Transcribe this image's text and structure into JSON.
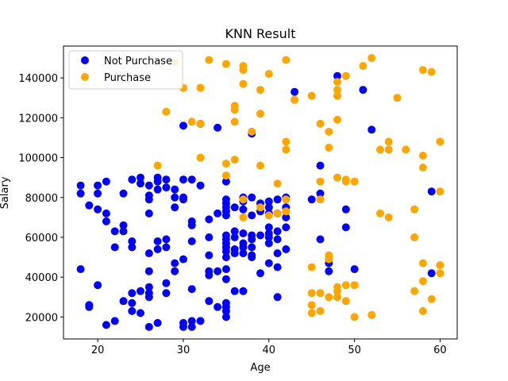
{
  "chart_data": {
    "type": "scatter",
    "title": "KNN Result",
    "xlabel": "Age",
    "ylabel": "Salary",
    "xlim": [
      16.0,
      62.0
    ],
    "ylim": [
      9000,
      156000
    ],
    "xticks": [
      20,
      30,
      40,
      50,
      60
    ],
    "yticks": [
      20000,
      40000,
      60000,
      80000,
      100000,
      120000,
      140000
    ],
    "ytick_labels": [
      "20000",
      "40000",
      "60000",
      "80000",
      "100000",
      "120000",
      "140000"
    ],
    "legend_position": "upper-left",
    "series": [
      {
        "name": "Not Purchase",
        "color": "#0000ff",
        "points": [
          [
            18,
            86000
          ],
          [
            18,
            82000
          ],
          [
            18,
            44000
          ],
          [
            19,
            76000
          ],
          [
            19,
            26000
          ],
          [
            19,
            25000
          ],
          [
            20,
            86000
          ],
          [
            20,
            82000
          ],
          [
            20,
            74000
          ],
          [
            20,
            36000
          ],
          [
            21,
            88000
          ],
          [
            21,
            72000
          ],
          [
            21,
            68000
          ],
          [
            21,
            16000
          ],
          [
            22,
            63000
          ],
          [
            22,
            55000
          ],
          [
            22,
            18000
          ],
          [
            23,
            82000
          ],
          [
            23,
            66000
          ],
          [
            23,
            63000
          ],
          [
            23,
            28000
          ],
          [
            24,
            89000
          ],
          [
            24,
            58000
          ],
          [
            24,
            55000
          ],
          [
            24,
            32000
          ],
          [
            24,
            27000
          ],
          [
            24,
            23000
          ],
          [
            25,
            90000
          ],
          [
            25,
            87000
          ],
          [
            25,
            33000
          ],
          [
            25,
            22000
          ],
          [
            26,
            86000
          ],
          [
            26,
            81000
          ],
          [
            26,
            79000
          ],
          [
            26,
            72000
          ],
          [
            26,
            52000
          ],
          [
            26,
            43000
          ],
          [
            26,
            35000
          ],
          [
            26,
            32000
          ],
          [
            26,
            30000
          ],
          [
            26,
            15000
          ],
          [
            27,
            90000
          ],
          [
            27,
            88000
          ],
          [
            27,
            84000
          ],
          [
            27,
            58000
          ],
          [
            27,
            54000
          ],
          [
            27,
            17000
          ],
          [
            28,
            89000
          ],
          [
            28,
            85000
          ],
          [
            28,
            59000
          ],
          [
            28,
            55000
          ],
          [
            28,
            37000
          ],
          [
            28,
            32000
          ],
          [
            29,
            84000
          ],
          [
            29,
            80000
          ],
          [
            29,
            75000
          ],
          [
            29,
            47000
          ],
          [
            29,
            43000
          ],
          [
            30,
            89000
          ],
          [
            30,
            80000
          ],
          [
            30,
            79000
          ],
          [
            30,
            49000
          ],
          [
            30,
            17000
          ],
          [
            30,
            15000
          ],
          [
            30,
            116000
          ],
          [
            31,
            89000
          ],
          [
            31,
            68000
          ],
          [
            31,
            66000
          ],
          [
            31,
            58000
          ],
          [
            31,
            34000
          ],
          [
            31,
            18000
          ],
          [
            31,
            15000
          ],
          [
            32,
            117000
          ],
          [
            32,
            86000
          ],
          [
            32,
            18000
          ],
          [
            33,
            69000
          ],
          [
            33,
            60000
          ],
          [
            33,
            51000
          ],
          [
            33,
            43000
          ],
          [
            33,
            41000
          ],
          [
            33,
            28000
          ],
          [
            34,
            115000
          ],
          [
            34,
            72000
          ],
          [
            34,
            43000
          ],
          [
            34,
            25000
          ],
          [
            35,
            88000
          ],
          [
            35,
            79000
          ],
          [
            35,
            77000
          ],
          [
            35,
            75000
          ],
          [
            35,
            73000
          ],
          [
            35,
            71000
          ],
          [
            35,
            61000
          ],
          [
            35,
            59000
          ],
          [
            35,
            57000
          ],
          [
            35,
            55000
          ],
          [
            35,
            53000
          ],
          [
            35,
            50000
          ],
          [
            35,
            44000
          ],
          [
            35,
            39000
          ],
          [
            35,
            27000
          ],
          [
            35,
            25000
          ],
          [
            35,
            23000
          ],
          [
            35,
            20000
          ],
          [
            36,
            75000
          ],
          [
            36,
            63000
          ],
          [
            36,
            60000
          ],
          [
            36,
            54000
          ],
          [
            36,
            52000
          ],
          [
            36,
            33000
          ],
          [
            37,
            80000
          ],
          [
            37,
            78000
          ],
          [
            37,
            74000
          ],
          [
            37,
            62000
          ],
          [
            37,
            57000
          ],
          [
            37,
            55000
          ],
          [
            37,
            52000
          ],
          [
            37,
            33000
          ],
          [
            38,
            112000
          ],
          [
            38,
            80000
          ],
          [
            38,
            71000
          ],
          [
            38,
            61000
          ],
          [
            38,
            59000
          ],
          [
            38,
            55000
          ],
          [
            38,
            51000
          ],
          [
            38,
            50000
          ],
          [
            39,
            77000
          ],
          [
            39,
            73000
          ],
          [
            39,
            61000
          ],
          [
            39,
            42000
          ],
          [
            40,
            78000
          ],
          [
            40,
            75000
          ],
          [
            40,
            72000
          ],
          [
            40,
            65000
          ],
          [
            40,
            62000
          ],
          [
            40,
            60000
          ],
          [
            40,
            57000
          ],
          [
            40,
            47000
          ],
          [
            41,
            79000
          ],
          [
            41,
            72000
          ],
          [
            41,
            63000
          ],
          [
            41,
            59000
          ],
          [
            41,
            52000
          ],
          [
            41,
            45000
          ],
          [
            41,
            30000
          ],
          [
            42,
            80000
          ],
          [
            42,
            75000
          ],
          [
            42,
            70000
          ],
          [
            42,
            65000
          ],
          [
            42,
            54000
          ],
          [
            43,
            133000
          ],
          [
            45,
            79000
          ],
          [
            46,
            96000
          ],
          [
            46,
            82000
          ],
          [
            46,
            59000
          ],
          [
            47,
            47000
          ],
          [
            47,
            43000
          ],
          [
            48,
            141000
          ],
          [
            49,
            74000
          ],
          [
            49,
            65000
          ],
          [
            50,
            44000
          ],
          [
            51,
            134000
          ],
          [
            52,
            114000
          ],
          [
            59,
            83000
          ],
          [
            59,
            42000
          ]
        ]
      },
      {
        "name": "Purchase",
        "color": "#ffa500",
        "points": [
          [
            27,
            96000
          ],
          [
            28,
            123000
          ],
          [
            29,
            148000
          ],
          [
            30,
            135000
          ],
          [
            31,
            118000
          ],
          [
            32,
            135000
          ],
          [
            32,
            117000
          ],
          [
            32,
            100000
          ],
          [
            33,
            149000
          ],
          [
            35,
            147000
          ],
          [
            35,
            97000
          ],
          [
            35,
            91000
          ],
          [
            36,
            126000
          ],
          [
            36,
            124000
          ],
          [
            36,
            118000
          ],
          [
            36,
            99000
          ],
          [
            37,
            146000
          ],
          [
            37,
            144000
          ],
          [
            37,
            137000
          ],
          [
            37,
            79000
          ],
          [
            37,
            70000
          ],
          [
            38,
            113000
          ],
          [
            39,
            134000
          ],
          [
            39,
            122000
          ],
          [
            39,
            96000
          ],
          [
            39,
            75000
          ],
          [
            40,
            142000
          ],
          [
            40,
            71000
          ],
          [
            41,
            87000
          ],
          [
            41,
            72000
          ],
          [
            42,
            149000
          ],
          [
            42,
            108000
          ],
          [
            42,
            104000
          ],
          [
            42,
            79000
          ],
          [
            42,
            73000
          ],
          [
            43,
            129000
          ],
          [
            45,
            131000
          ],
          [
            45,
            45000
          ],
          [
            45,
            32000
          ],
          [
            45,
            26000
          ],
          [
            45,
            22000
          ],
          [
            46,
            117000
          ],
          [
            46,
            88000
          ],
          [
            46,
            79000
          ],
          [
            46,
            32000
          ],
          [
            46,
            23000
          ],
          [
            47,
            113000
          ],
          [
            47,
            105000
          ],
          [
            47,
            51000
          ],
          [
            47,
            50000
          ],
          [
            47,
            49000
          ],
          [
            47,
            30000
          ],
          [
            48,
            138000
          ],
          [
            48,
            134000
          ],
          [
            48,
            131000
          ],
          [
            48,
            119000
          ],
          [
            48,
            90000
          ],
          [
            48,
            35000
          ],
          [
            48,
            33000
          ],
          [
            48,
            30000
          ],
          [
            49,
            141000
          ],
          [
            49,
            89000
          ],
          [
            49,
            88000
          ],
          [
            49,
            36000
          ],
          [
            49,
            28000
          ],
          [
            50,
            88000
          ],
          [
            50,
            36000
          ],
          [
            50,
            20000
          ],
          [
            51,
            146000
          ],
          [
            52,
            150000
          ],
          [
            52,
            21000
          ],
          [
            53,
            104000
          ],
          [
            53,
            72000
          ],
          [
            54,
            108000
          ],
          [
            54,
            104000
          ],
          [
            54,
            70000
          ],
          [
            55,
            130000
          ],
          [
            56,
            104000
          ],
          [
            57,
            74000
          ],
          [
            57,
            60000
          ],
          [
            57,
            33000
          ],
          [
            58,
            144000
          ],
          [
            58,
            101000
          ],
          [
            58,
            95000
          ],
          [
            58,
            47000
          ],
          [
            58,
            38000
          ],
          [
            58,
            23000
          ],
          [
            59,
            143000
          ],
          [
            59,
            29000
          ],
          [
            60,
            108000
          ],
          [
            60,
            83000
          ],
          [
            60,
            46000
          ],
          [
            60,
            42000
          ]
        ]
      }
    ]
  }
}
